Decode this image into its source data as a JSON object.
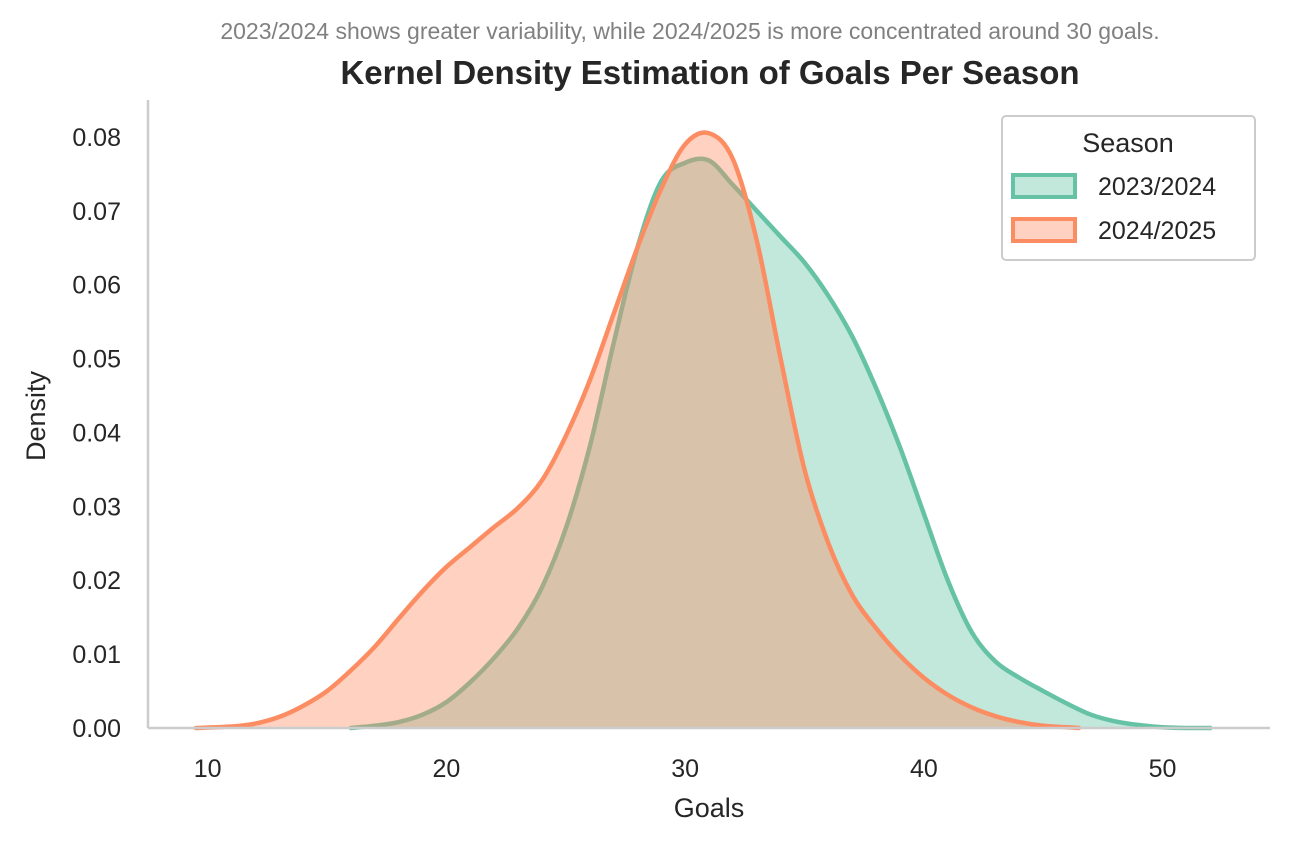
{
  "chart_data": {
    "type": "area",
    "subtitle": "2023/2024 shows greater variability, while 2024/2025 is more concentrated around 30 goals.",
    "title": "Kernel Density Estimation of Goals Per Season",
    "xlabel": "Goals",
    "ylabel": "Density",
    "xlim": [
      7.5,
      54.5
    ],
    "ylim": [
      0,
      0.085
    ],
    "xticks": [
      10,
      20,
      30,
      40,
      50
    ],
    "xtick_labels": [
      "10",
      "20",
      "30",
      "40",
      "50"
    ],
    "yticks": [
      0.0,
      0.01,
      0.02,
      0.03,
      0.04,
      0.05,
      0.06,
      0.07,
      0.08
    ],
    "ytick_labels": [
      "0.00",
      "0.01",
      "0.02",
      "0.03",
      "0.04",
      "0.05",
      "0.06",
      "0.07",
      "0.08"
    ],
    "grid": false,
    "legend": {
      "title": "Season",
      "position": "top-right"
    },
    "series": [
      {
        "name": "2023/2024",
        "color": "#66c2a5",
        "x": [
          16,
          17,
          18,
          19,
          20,
          21,
          22,
          23,
          24,
          25,
          26,
          27,
          28,
          29,
          30,
          31,
          32,
          33,
          34,
          35,
          36,
          37,
          38,
          39,
          40,
          41,
          42,
          43,
          44,
          45,
          46,
          47,
          48,
          49,
          50,
          51,
          52
        ],
        "values": [
          0.0,
          0.0003,
          0.0008,
          0.0018,
          0.0035,
          0.0062,
          0.0095,
          0.0135,
          0.019,
          0.027,
          0.038,
          0.052,
          0.065,
          0.074,
          0.0765,
          0.0768,
          0.0735,
          0.07,
          0.0665,
          0.063,
          0.0585,
          0.053,
          0.046,
          0.038,
          0.029,
          0.02,
          0.013,
          0.009,
          0.0068,
          0.005,
          0.0033,
          0.0018,
          0.0009,
          0.0004,
          0.0001,
          0.0,
          0.0
        ]
      },
      {
        "name": "2024/2025",
        "color": "#fc8d62",
        "x": [
          9.5,
          11,
          12,
          13,
          14,
          15,
          16,
          17,
          18,
          19,
          20,
          21,
          22,
          23,
          24,
          25,
          26,
          27,
          28,
          29,
          30,
          31,
          32,
          33,
          34,
          35,
          36,
          37,
          38,
          39,
          40,
          41,
          42,
          43,
          44,
          45,
          46,
          46.5
        ],
        "values": [
          0.0,
          0.0002,
          0.0006,
          0.0015,
          0.003,
          0.005,
          0.0078,
          0.011,
          0.0148,
          0.0185,
          0.0218,
          0.0245,
          0.0272,
          0.0298,
          0.0335,
          0.0395,
          0.047,
          0.056,
          0.065,
          0.073,
          0.079,
          0.0805,
          0.077,
          0.066,
          0.05,
          0.035,
          0.025,
          0.018,
          0.0135,
          0.0098,
          0.0068,
          0.0045,
          0.0028,
          0.0016,
          0.0008,
          0.0003,
          0.0001,
          0.0
        ]
      }
    ]
  }
}
